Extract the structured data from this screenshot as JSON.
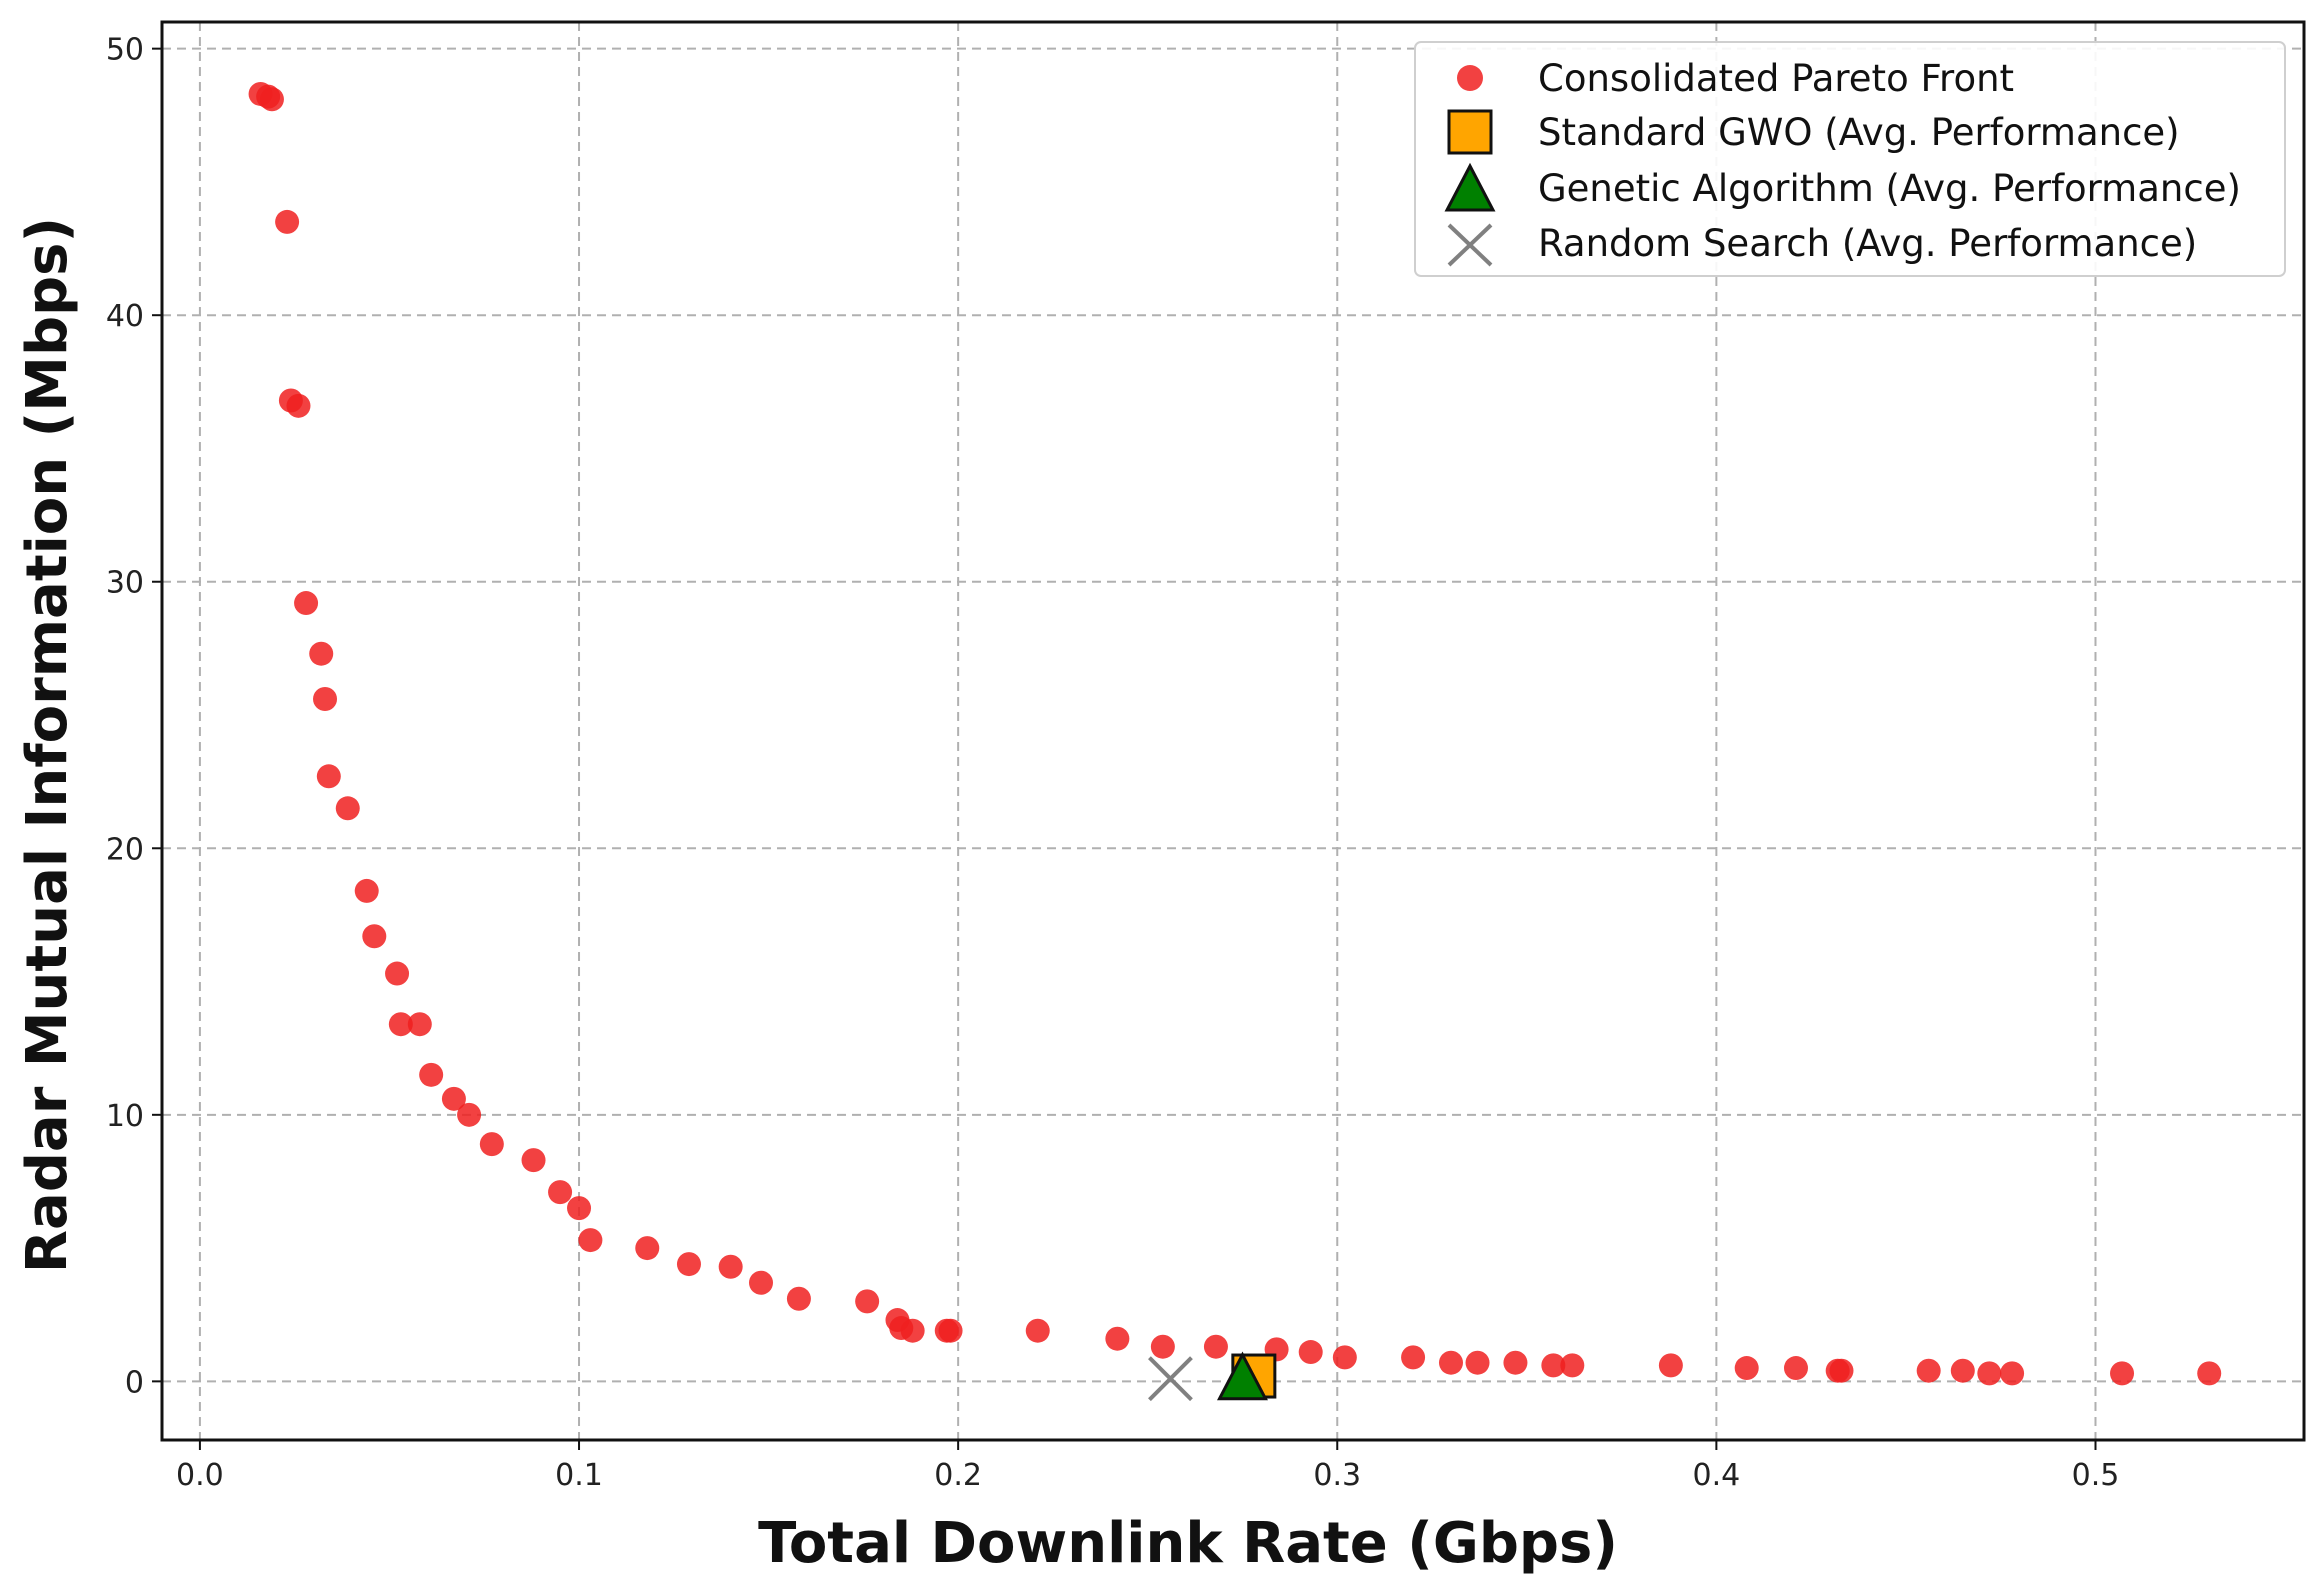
{
  "chart_data": {
    "type": "scatter",
    "title": "",
    "xlabel": "Total Downlink Rate (Gbps)",
    "ylabel": "Radar Mutual Information (Mbps)",
    "xlim": [
      -0.01,
      0.555
    ],
    "ylim": [
      -2.2,
      51
    ],
    "xticks": [
      0.0,
      0.1,
      0.2,
      0.3,
      0.4,
      0.5
    ],
    "xtick_labels": [
      "0.0",
      "0.1",
      "0.2",
      "0.3",
      "0.4",
      "0.5"
    ],
    "yticks": [
      0,
      10,
      20,
      30,
      40,
      50
    ],
    "ytick_labels": [
      "0",
      "10",
      "20",
      "30",
      "40",
      "50"
    ],
    "grid": true,
    "legend_position": "top-right",
    "series": [
      {
        "name": "Consolidated Pareto Front",
        "marker": "circle",
        "color": "#f02020",
        "x": [
          0.016,
          0.018,
          0.019,
          0.023,
          0.024,
          0.026,
          0.028,
          0.032,
          0.033,
          0.034,
          0.039,
          0.044,
          0.046,
          0.052,
          0.053,
          0.058,
          0.061,
          0.067,
          0.071,
          0.077,
          0.088,
          0.095,
          0.1,
          0.103,
          0.118,
          0.129,
          0.14,
          0.148,
          0.158,
          0.176,
          0.184,
          0.185,
          0.188,
          0.197,
          0.198,
          0.221,
          0.242,
          0.254,
          0.268,
          0.284,
          0.293,
          0.302,
          0.32,
          0.33,
          0.337,
          0.347,
          0.357,
          0.362,
          0.388,
          0.408,
          0.421,
          0.432,
          0.433,
          0.456,
          0.465,
          0.472,
          0.478,
          0.507,
          0.53
        ],
        "y": [
          48.3,
          48.2,
          48.1,
          43.5,
          36.8,
          36.6,
          29.2,
          27.3,
          25.6,
          22.7,
          21.5,
          18.4,
          16.7,
          15.3,
          13.4,
          13.4,
          11.5,
          10.6,
          10.0,
          8.9,
          8.3,
          7.1,
          6.5,
          5.3,
          5.0,
          4.4,
          4.3,
          3.7,
          3.1,
          3.0,
          2.3,
          2.0,
          1.9,
          1.9,
          1.9,
          1.9,
          1.6,
          1.3,
          1.3,
          1.2,
          1.1,
          0.9,
          0.9,
          0.7,
          0.7,
          0.7,
          0.6,
          0.6,
          0.6,
          0.5,
          0.5,
          0.4,
          0.4,
          0.4,
          0.4,
          0.3,
          0.3,
          0.3,
          0.3
        ]
      },
      {
        "name": "Standard GWO (Avg. Performance)",
        "marker": "square",
        "color": "#ffa500",
        "x": [
          0.278
        ],
        "y": [
          0.2
        ]
      },
      {
        "name": "Genetic Algorithm (Avg. Performance)",
        "marker": "triangle",
        "color": "#008000",
        "x": [
          0.275
        ],
        "y": [
          0.1
        ]
      },
      {
        "name": "Random Search (Avg. Performance)",
        "marker": "x",
        "color": "#808080",
        "x": [
          0.256
        ],
        "y": [
          0.1
        ]
      }
    ]
  }
}
